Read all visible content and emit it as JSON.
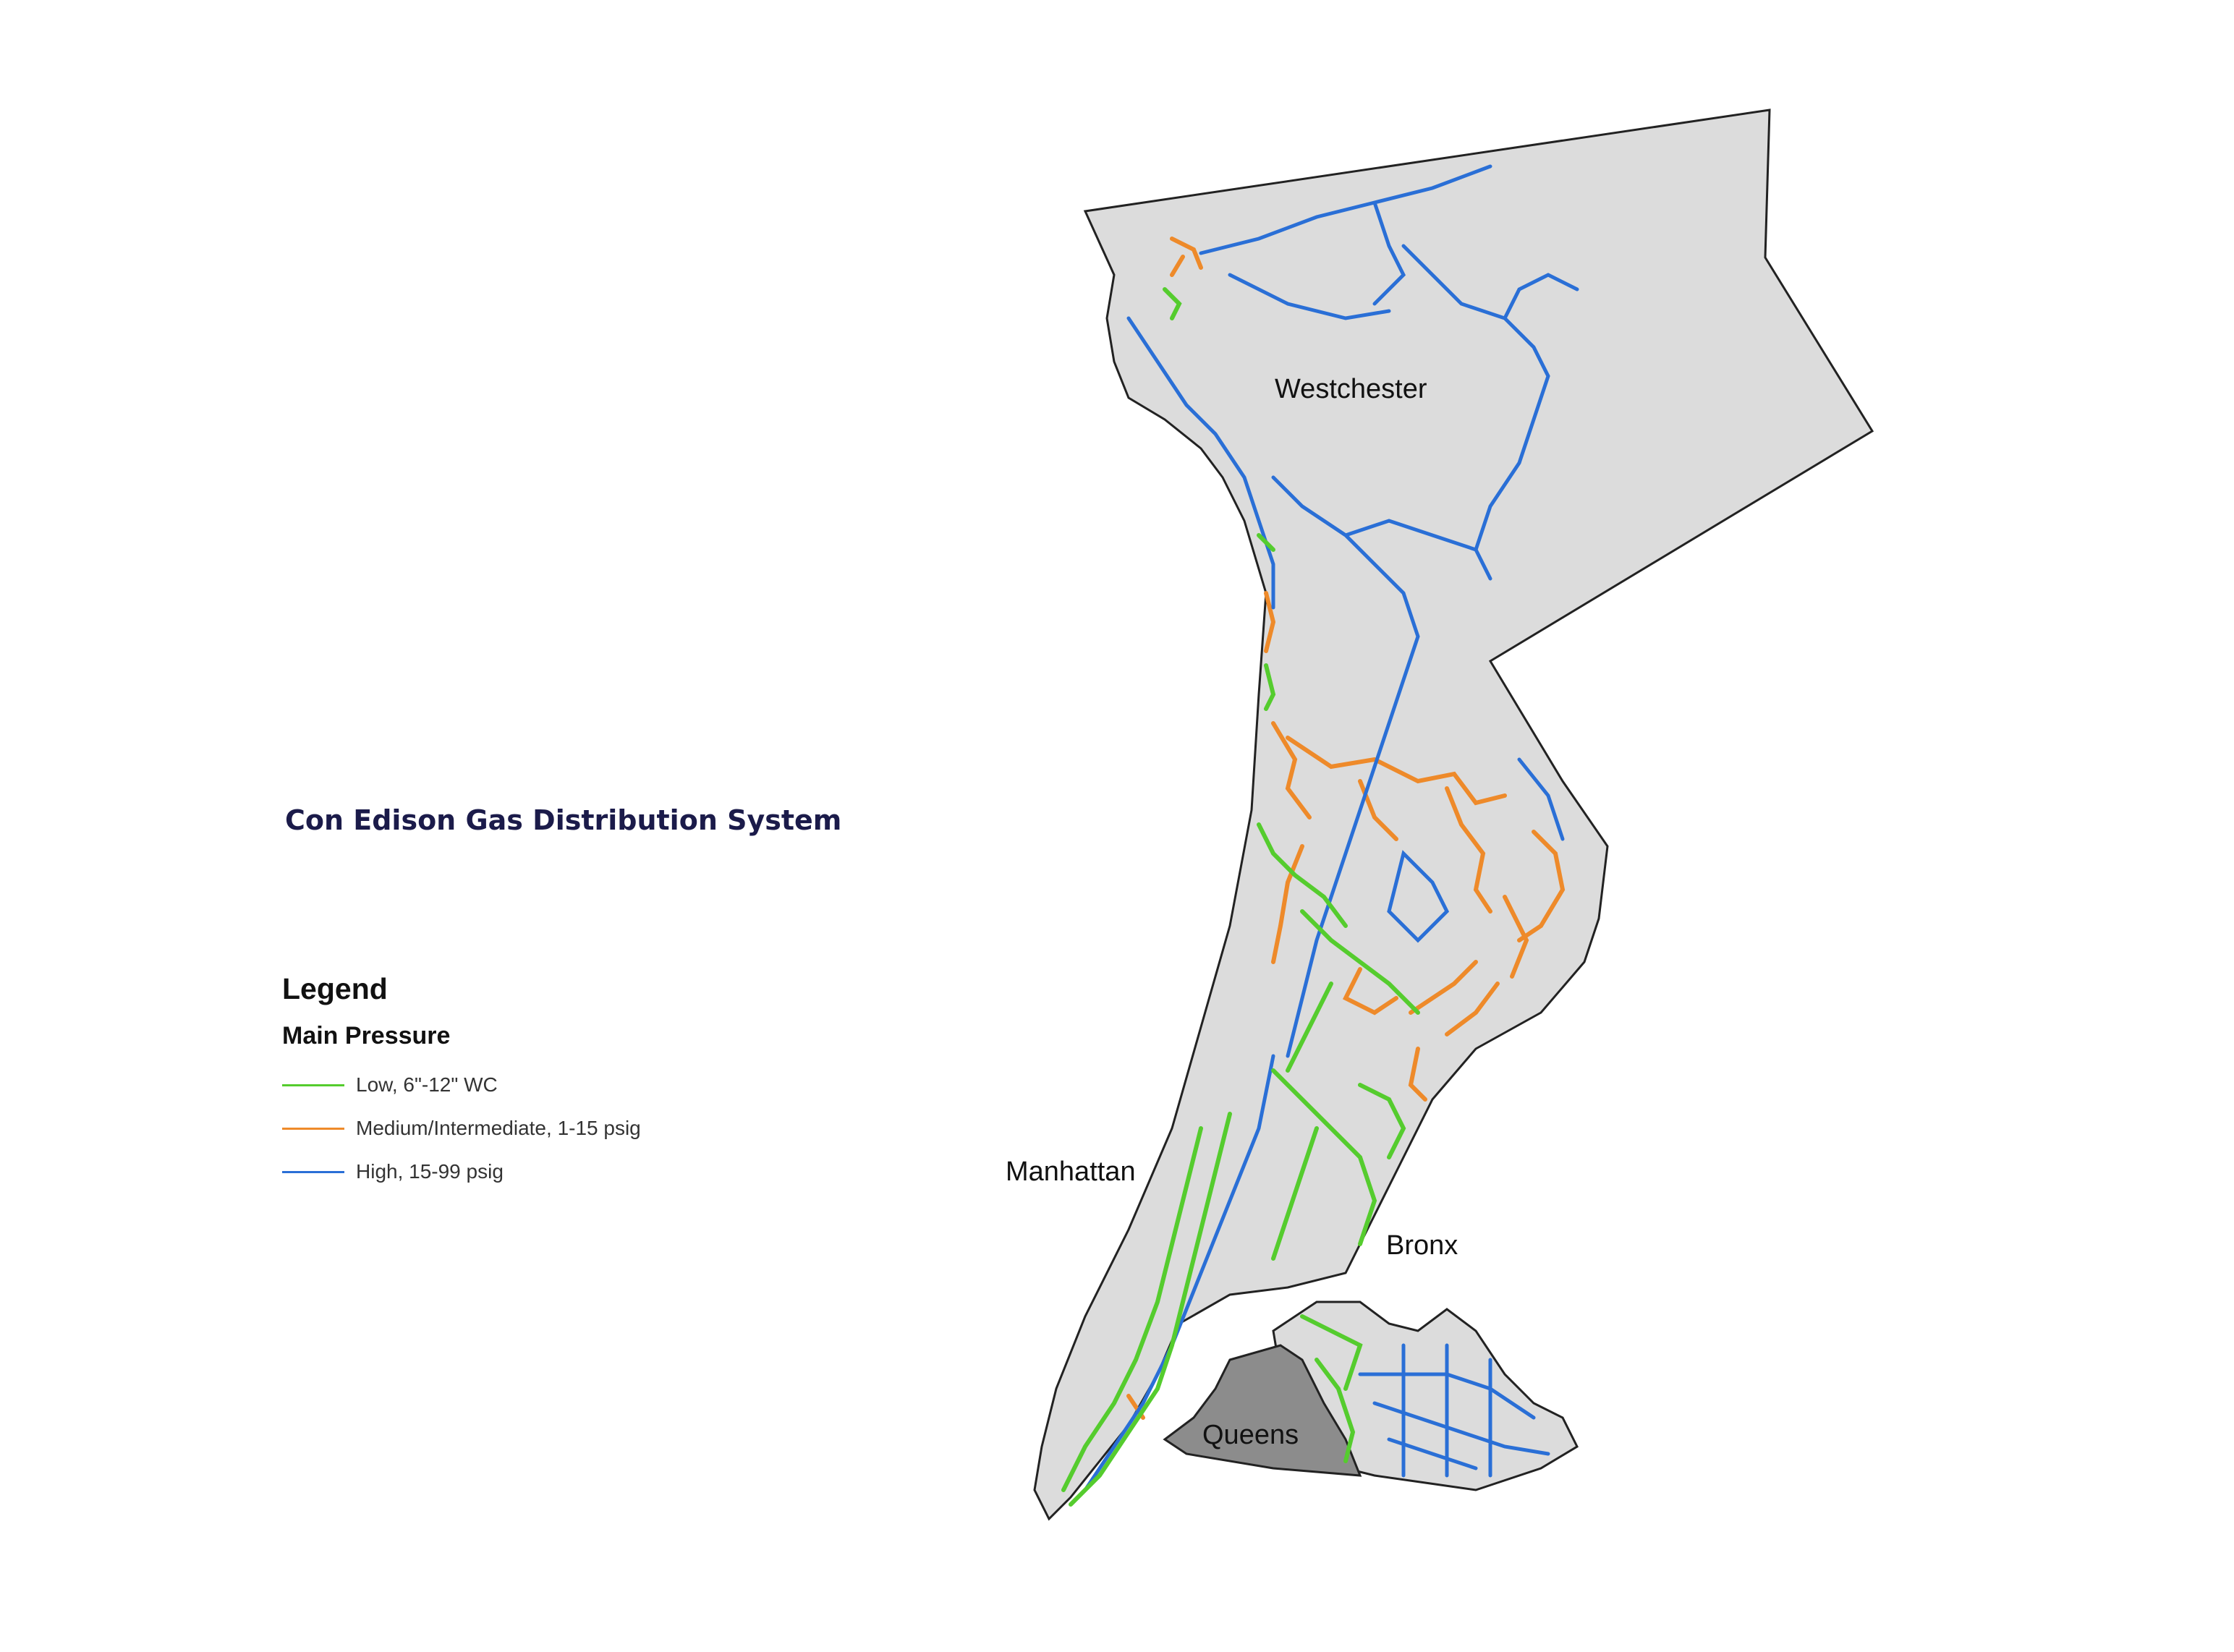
{
  "title": "Con Edison Gas Distribution System",
  "legend": {
    "heading": "Legend",
    "subheading": "Main Pressure",
    "items": [
      {
        "label": "Low, 6\"-12\" WC",
        "color": "#55cc2e"
      },
      {
        "label": "Medium/Intermediate, 1-15 psig",
        "color": "#ee8a2a"
      },
      {
        "label": "High, 15-99 psig",
        "color": "#2a6fd6"
      }
    ]
  },
  "regions": {
    "westchester": "Westchester",
    "manhattan": "Manhattan",
    "bronx": "Bronx",
    "queens": "Queens"
  },
  "colors": {
    "land": "#dcdcdc",
    "queens_fill": "#8c8c8c",
    "outline": "#222222",
    "low": "#55cc2e",
    "medium": "#ee8a2a",
    "high": "#2a6fd6"
  }
}
